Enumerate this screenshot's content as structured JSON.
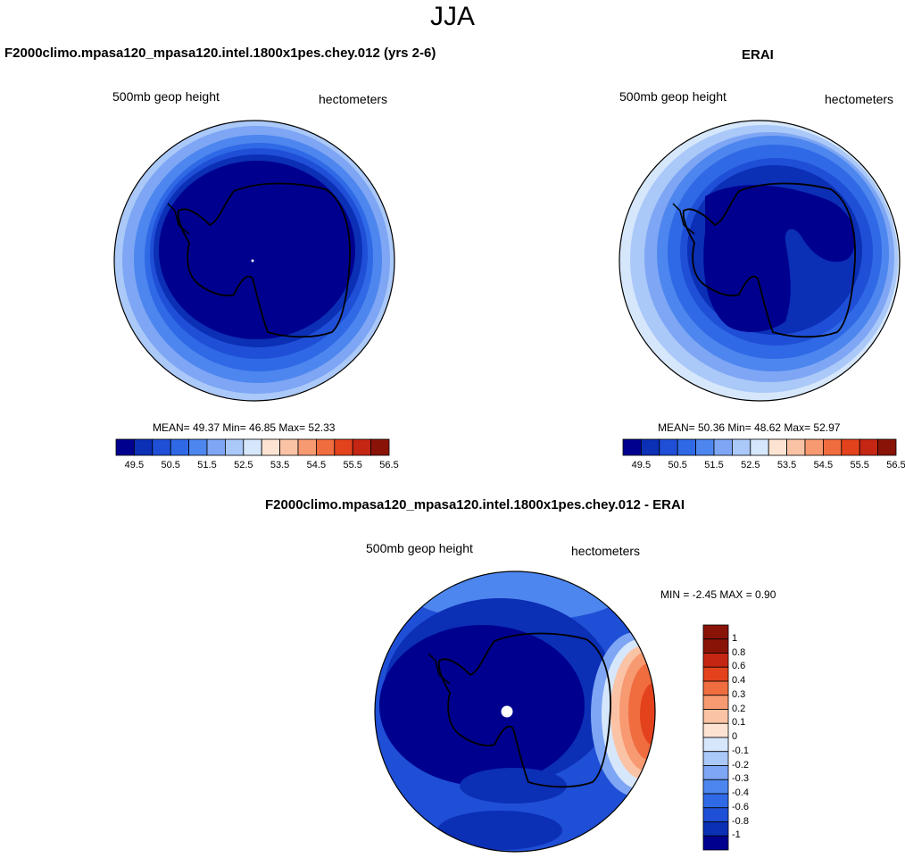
{
  "page": {
    "title": "JJA"
  },
  "colors": {
    "abs_scale": [
      "#00008f",
      "#0b2fb5",
      "#1f4fd6",
      "#2f69e6",
      "#4d86ee",
      "#7ea6f4",
      "#aac8f8",
      "#d6e7fc",
      "#fde4d2",
      "#fbc3a5",
      "#f79a72",
      "#f06d40",
      "#e3421d",
      "#c42613",
      "#8a1308"
    ],
    "diff_scale": [
      "#8a1308",
      "#c42613",
      "#e3421d",
      "#f06d40",
      "#f79a72",
      "#fbc3a5",
      "#fde4d2",
      "#d6e7fc",
      "#aac8f8",
      "#7ea6f4",
      "#4d86ee",
      "#2f69e6",
      "#1f4fd6",
      "#0b2fb5",
      "#00008f"
    ],
    "coastline": "#000000",
    "pole_marker": "#ffffff"
  },
  "panels": {
    "model": {
      "title": "F2000climo.mpasa120_mpasa120.intel.1800x1pes.chey.012 (yrs 2-6)",
      "variable": "500mb geop height",
      "units": "hectometers",
      "stats": "MEAN=  49.37  Min=  46.85  Max=  52.33",
      "colorbar_ticks": [
        "49.5",
        "50.5",
        "51.5",
        "52.5",
        "53.5",
        "54.5",
        "55.5",
        "56.5"
      ]
    },
    "obs": {
      "title": "ERAI",
      "variable": "500mb geop height",
      "units": "hectometers",
      "stats": "MEAN=  50.36  Min=  48.62  Max=  52.97",
      "colorbar_ticks": [
        "49.5",
        "50.5",
        "51.5",
        "52.5",
        "53.5",
        "54.5",
        "55.5",
        "56.5"
      ]
    },
    "diff": {
      "title": "F2000climo.mpasa120_mpasa120.intel.1800x1pes.chey.012 - ERAI",
      "variable": "500mb geop height",
      "units": "hectometers",
      "stats": "MIN =  -2.45 MAX =   0.90",
      "colorbar_ticks": [
        "1",
        "0.8",
        "0.6",
        "0.4",
        "0.3",
        "0.2",
        "0.1",
        "0",
        "-0.1",
        "-0.2",
        "-0.3",
        "-0.4",
        "-0.6",
        "-0.8",
        "-1"
      ]
    }
  }
}
